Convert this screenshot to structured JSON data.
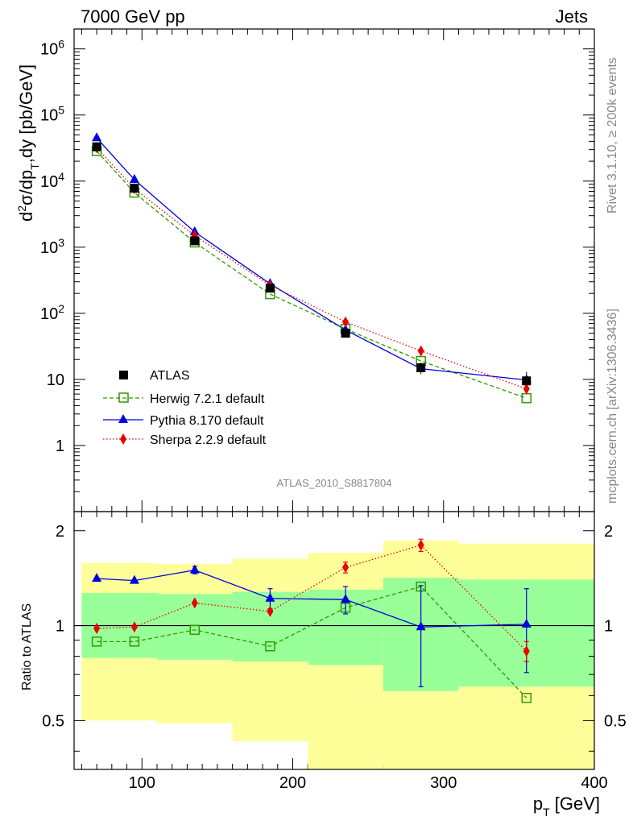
{
  "header": {
    "left": "7000 GeV pp",
    "right": "Jets"
  },
  "side_text": {
    "rivet": "Rivet 3.1.10, ≥ 200k events",
    "mcplots": "mcplots.cern.ch [arXiv:1306.3436]"
  },
  "analysis_label": "ATLAS_2010_S8817804",
  "legend": {
    "atlas": "ATLAS",
    "herwig": "Herwig 7.2.1 default",
    "pythia": "Pythia 8.170 default",
    "sherpa": "Sherpa 2.2.9 default"
  },
  "axes": {
    "y_main_label": "d²σ/dpₜ,dy [pb/GeV]",
    "y_ratio_label": "Ratio to ATLAS",
    "x_label": "p_T [GeV]",
    "x_ticks": [
      "100",
      "200",
      "300",
      "400"
    ],
    "y_main_ticks": [
      "1",
      "10",
      "10²",
      "10³",
      "10⁴",
      "10⁵",
      "10⁶"
    ],
    "y_ratio_ticks_left": [
      "0.5",
      "1",
      "2"
    ],
    "y_ratio_ticks_right": [
      "0.5",
      "1",
      "2"
    ]
  },
  "chart_data": [
    {
      "type": "line",
      "panel": "main",
      "xlabel": "p_T [GeV]",
      "ylabel": "d²σ/dp_T,dy [pb/GeV]",
      "xlim": [
        55,
        400
      ],
      "ylim": [
        0.1,
        2000000
      ],
      "log_y": true,
      "x": [
        70,
        95,
        135,
        185,
        235,
        285,
        355
      ],
      "series": [
        {
          "name": "ATLAS",
          "color": "#000000",
          "marker": "filled-square",
          "values": [
            33000,
            7800,
            1250,
            240,
            50,
            15,
            9.5
          ],
          "errors": [
            3000,
            700,
            100,
            20,
            5,
            3,
            3.5
          ]
        },
        {
          "name": "Herwig 7.2.1 default",
          "color": "#339900",
          "marker": "open-square",
          "style": "dashed",
          "values": [
            28500,
            6700,
            1180,
            195,
            58,
            19,
            5.2
          ]
        },
        {
          "name": "Pythia 8.170 default",
          "color": "#0000dd",
          "marker": "triangle",
          "style": "solid",
          "values": [
            45000,
            10500,
            1700,
            280,
            56,
            14.5,
            9.8
          ]
        },
        {
          "name": "Sherpa 2.2.9 default",
          "color": "#ee0000",
          "marker": "diamond",
          "style": "dotted",
          "values": [
            32000,
            7700,
            1500,
            265,
            74,
            27,
            7.2
          ]
        }
      ]
    },
    {
      "type": "line",
      "panel": "ratio",
      "ylabel": "Ratio to ATLAS",
      "ylim": [
        0.35,
        2.3
      ],
      "log_y": true,
      "x": [
        70,
        95,
        135,
        185,
        235,
        285,
        355
      ],
      "bins": [
        [
          60,
          85
        ],
        [
          85,
          110
        ],
        [
          110,
          160
        ],
        [
          160,
          210
        ],
        [
          210,
          260
        ],
        [
          260,
          310
        ],
        [
          310,
          400
        ]
      ],
      "band_inner": [
        [
          0.79,
          1.27
        ],
        [
          0.79,
          1.27
        ],
        [
          0.78,
          1.26
        ],
        [
          0.77,
          1.28
        ],
        [
          0.75,
          1.3
        ],
        [
          0.62,
          1.42
        ],
        [
          0.64,
          1.4
        ]
      ],
      "band_outer": [
        [
          0.5,
          1.58
        ],
        [
          0.5,
          1.58
        ],
        [
          0.49,
          1.57
        ],
        [
          0.43,
          1.63
        ],
        [
          0.35,
          1.7
        ],
        [
          0.33,
          1.86
        ],
        [
          0.33,
          1.82
        ]
      ],
      "series": [
        {
          "name": "Herwig 7.2.1 default",
          "values": [
            0.89,
            0.89,
            0.97,
            0.86,
            1.14,
            1.33,
            0.59
          ]
        },
        {
          "name": "Pythia 8.170 default",
          "values": [
            1.41,
            1.39,
            1.5,
            1.22,
            1.21,
            0.99,
            1.01
          ],
          "errors": [
            0,
            0,
            0.04,
            0.09,
            0.12,
            0.35,
            0.3
          ]
        },
        {
          "name": "Sherpa 2.2.9 default",
          "values": [
            0.98,
            0.99,
            1.18,
            1.11,
            1.53,
            1.8,
            0.83
          ],
          "errors": [
            0,
            0,
            0,
            0,
            0.06,
            0.08,
            0.06
          ]
        }
      ]
    }
  ]
}
